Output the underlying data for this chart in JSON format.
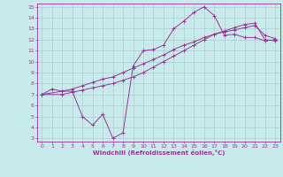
{
  "xlabel": "Windchill (Refroidissement éolien,°C)",
  "bg_color": "#c8eaea",
  "line_color": "#993399",
  "grid_color": "#aacccc",
  "xlim": [
    -0.5,
    23.5
  ],
  "ylim": [
    2.7,
    15.3
  ],
  "xticks": [
    0,
    1,
    2,
    3,
    4,
    5,
    6,
    7,
    8,
    9,
    10,
    11,
    12,
    13,
    14,
    15,
    16,
    17,
    18,
    19,
    20,
    21,
    22,
    23
  ],
  "yticks": [
    3,
    4,
    5,
    6,
    7,
    8,
    9,
    10,
    11,
    12,
    13,
    14,
    15
  ],
  "line1_x": [
    0,
    1,
    2,
    3,
    4,
    5,
    6,
    7,
    8,
    9,
    10,
    11,
    12,
    13,
    14,
    15,
    16,
    17,
    18,
    19,
    20,
    21,
    22,
    23
  ],
  "line1_y": [
    7.0,
    7.5,
    7.3,
    7.3,
    5.0,
    4.2,
    5.2,
    3.0,
    3.5,
    9.6,
    11.0,
    11.1,
    11.5,
    13.0,
    13.7,
    14.5,
    15.0,
    14.2,
    12.4,
    12.5,
    12.2,
    12.2,
    11.9,
    12.0
  ],
  "line2_x": [
    0,
    2,
    3,
    4,
    5,
    6,
    7,
    8,
    9,
    10,
    11,
    12,
    13,
    14,
    15,
    16,
    17,
    18,
    19,
    20,
    21,
    22,
    23
  ],
  "line2_y": [
    7.0,
    7.3,
    7.5,
    7.8,
    8.1,
    8.4,
    8.6,
    9.0,
    9.4,
    9.8,
    10.2,
    10.6,
    11.1,
    11.5,
    11.8,
    12.2,
    12.5,
    12.7,
    12.9,
    13.1,
    13.3,
    12.4,
    12.1
  ],
  "line3_x": [
    0,
    2,
    3,
    4,
    5,
    6,
    7,
    8,
    9,
    10,
    11,
    12,
    13,
    14,
    15,
    16,
    17,
    18,
    19,
    20,
    21,
    22,
    23
  ],
  "line3_y": [
    7.0,
    7.0,
    7.2,
    7.4,
    7.6,
    7.8,
    8.0,
    8.3,
    8.6,
    9.0,
    9.5,
    10.0,
    10.5,
    11.0,
    11.5,
    12.0,
    12.5,
    12.8,
    13.1,
    13.4,
    13.5,
    12.0,
    11.9
  ]
}
